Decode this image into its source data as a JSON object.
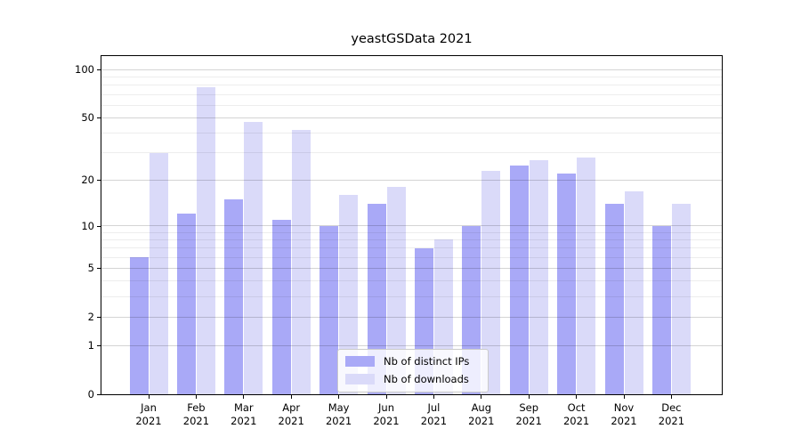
{
  "title": "yeastGSData 2021",
  "chart_data": {
    "type": "bar",
    "title": "yeastGSData 2021",
    "categories": [
      "Jan 2021",
      "Feb 2021",
      "Mar 2021",
      "Apr 2021",
      "May 2021",
      "Jun 2021",
      "Jul 2021",
      "Aug 2021",
      "Sep 2021",
      "Oct 2021",
      "Nov 2021",
      "Dec 2021"
    ],
    "series": [
      {
        "name": "Nb of distinct IPs",
        "color": "#a9a9f7",
        "values": [
          6,
          12,
          15,
          11,
          10,
          14,
          7,
          10,
          25,
          22,
          14,
          10
        ]
      },
      {
        "name": "Nb of downloads",
        "color": "#dadaf9",
        "values": [
          30,
          78,
          47,
          42,
          16,
          18,
          8,
          23,
          27,
          28,
          17,
          14
        ]
      }
    ],
    "xlabel": "",
    "ylabel": "",
    "y_scale": "log1p",
    "y_tick_labels": [
      "0",
      "1",
      "2",
      "5",
      "10",
      "20",
      "50",
      "100"
    ],
    "y_ticks": [
      0,
      1,
      2,
      5,
      10,
      20,
      50,
      100
    ],
    "y_minor_gridlines": [
      3,
      4,
      6,
      7,
      8,
      9,
      30,
      40,
      60,
      70,
      80,
      90
    ],
    "ylim": [
      0,
      121
    ],
    "grid": "on",
    "grid_over_bars": true,
    "legend_position": "lower center"
  },
  "colors": {
    "background": "#ffffff",
    "axis": "#000000",
    "major_grid": "#c9c9c9",
    "minor_grid": "#ececec",
    "bar_distinct_ips": "#a9a9f7",
    "bar_downloads": "#dadaf9",
    "legend_border": "#cbcbcb"
  }
}
